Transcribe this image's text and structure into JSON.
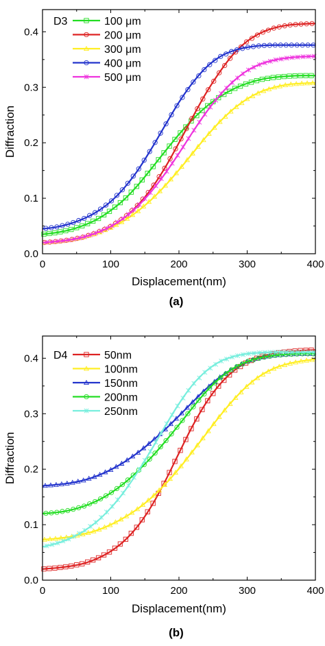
{
  "chart_data": [
    {
      "type": "line",
      "caption": "(a)",
      "xlabel": "Displacement(nm)",
      "ylabel": "Diffraction",
      "xlim": [
        0,
        400
      ],
      "ylim": [
        0,
        0.44
      ],
      "xticks": [
        "0",
        "100",
        "200",
        "300",
        "400"
      ],
      "yticks": [
        "0.0",
        "0.1",
        "0.2",
        "0.3",
        "0.4"
      ],
      "legend_title": "D3",
      "legend_position": "top-left",
      "grid": false,
      "x": [
        0,
        20,
        40,
        60,
        80,
        100,
        120,
        140,
        160,
        180,
        200,
        220,
        240,
        260,
        280,
        300,
        320,
        340,
        360,
        380,
        400
      ],
      "series": [
        {
          "name": "100 μm",
          "color": "#22dd22",
          "marker": "square",
          "values": [
            0.035,
            0.038,
            0.043,
            0.051,
            0.062,
            0.078,
            0.098,
            0.124,
            0.154,
            0.185,
            0.215,
            0.242,
            0.265,
            0.283,
            0.297,
            0.307,
            0.314,
            0.318,
            0.32,
            0.321,
            0.321
          ]
        },
        {
          "name": "200 μm",
          "color": "#dd2222",
          "marker": "circle",
          "values": [
            0.02,
            0.022,
            0.025,
            0.03,
            0.038,
            0.049,
            0.065,
            0.088,
            0.118,
            0.156,
            0.2,
            0.246,
            0.29,
            0.328,
            0.36,
            0.383,
            0.398,
            0.407,
            0.412,
            0.414,
            0.415
          ]
        },
        {
          "name": "300 μm",
          "color": "#ffee22",
          "marker": "triangle",
          "values": [
            0.02,
            0.022,
            0.025,
            0.03,
            0.037,
            0.047,
            0.06,
            0.077,
            0.098,
            0.123,
            0.151,
            0.181,
            0.211,
            0.238,
            0.261,
            0.279,
            0.292,
            0.3,
            0.305,
            0.307,
            0.308
          ]
        },
        {
          "name": "400 μm",
          "color": "#2233cc",
          "marker": "circle",
          "values": [
            0.045,
            0.048,
            0.054,
            0.063,
            0.076,
            0.094,
            0.119,
            0.151,
            0.19,
            0.232,
            0.273,
            0.308,
            0.336,
            0.355,
            0.366,
            0.372,
            0.375,
            0.376,
            0.376,
            0.376,
            0.376
          ]
        },
        {
          "name": "500 μm",
          "color": "#ee33dd",
          "marker": "star",
          "values": [
            0.02,
            0.022,
            0.025,
            0.03,
            0.038,
            0.049,
            0.065,
            0.086,
            0.113,
            0.145,
            0.181,
            0.219,
            0.255,
            0.286,
            0.311,
            0.33,
            0.342,
            0.349,
            0.353,
            0.355,
            0.356
          ]
        }
      ]
    },
    {
      "type": "line",
      "caption": "(b)",
      "xlabel": "Displacement(nm)",
      "ylabel": "Diffraction",
      "xlim": [
        0,
        400
      ],
      "ylim": [
        0,
        0.44
      ],
      "xticks": [
        "0",
        "100",
        "200",
        "300",
        "400"
      ],
      "yticks": [
        "0.0",
        "0.1",
        "0.2",
        "0.3",
        "0.4"
      ],
      "legend_title": "D4",
      "legend_position": "top-left",
      "grid": false,
      "x": [
        0,
        20,
        40,
        60,
        80,
        100,
        120,
        140,
        160,
        180,
        200,
        220,
        240,
        260,
        280,
        300,
        320,
        340,
        360,
        380,
        400
      ],
      "series": [
        {
          "name": "50nm",
          "color": "#dd2222",
          "marker": "square",
          "values": [
            0.02,
            0.022,
            0.025,
            0.03,
            0.039,
            0.052,
            0.071,
            0.098,
            0.134,
            0.179,
            0.229,
            0.278,
            0.32,
            0.353,
            0.377,
            0.393,
            0.403,
            0.409,
            0.412,
            0.414,
            0.415
          ]
        },
        {
          "name": "100nm",
          "color": "#ffee22",
          "marker": "triangle",
          "values": [
            0.073,
            0.075,
            0.078,
            0.083,
            0.09,
            0.1,
            0.113,
            0.129,
            0.149,
            0.173,
            0.201,
            0.232,
            0.264,
            0.296,
            0.325,
            0.35,
            0.369,
            0.382,
            0.39,
            0.395,
            0.398
          ]
        },
        {
          "name": "150nm",
          "color": "#2233cc",
          "marker": "triangle",
          "values": [
            0.17,
            0.172,
            0.175,
            0.18,
            0.188,
            0.199,
            0.213,
            0.23,
            0.25,
            0.272,
            0.296,
            0.321,
            0.345,
            0.366,
            0.382,
            0.394,
            0.401,
            0.405,
            0.407,
            0.408,
            0.408
          ]
        },
        {
          "name": "200nm",
          "color": "#22dd22",
          "marker": "circle",
          "values": [
            0.12,
            0.122,
            0.126,
            0.133,
            0.143,
            0.157,
            0.175,
            0.197,
            0.222,
            0.25,
            0.28,
            0.311,
            0.34,
            0.364,
            0.382,
            0.394,
            0.401,
            0.405,
            0.407,
            0.408,
            0.408
          ]
        },
        {
          "name": "250nm",
          "color": "#77eedd",
          "marker": "star",
          "values": [
            0.06,
            0.066,
            0.075,
            0.088,
            0.106,
            0.13,
            0.16,
            0.196,
            0.236,
            0.278,
            0.318,
            0.352,
            0.377,
            0.394,
            0.403,
            0.408,
            0.41,
            0.411,
            0.411,
            0.411,
            0.411
          ]
        }
      ]
    }
  ]
}
